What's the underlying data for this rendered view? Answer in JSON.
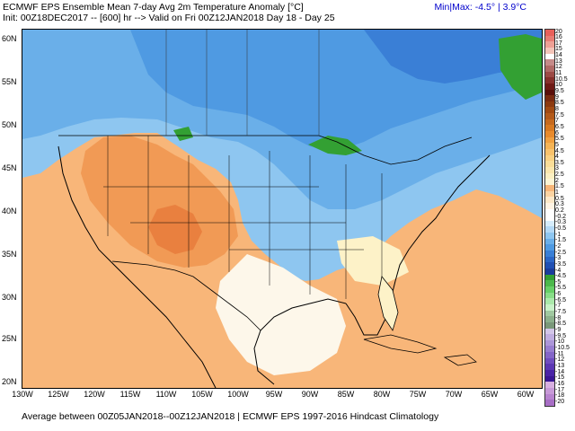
{
  "header": {
    "title": "ECMWF EPS Ensemble Mean 7-day Avg 2m Temperature Anomaly [°C]",
    "init_line": "Init: 00Z18DEC2017 -- [600] hr --> Valid on Fri 00Z12JAN2018  Day 18 - Day 25",
    "minmax": "Min|Max: -4.5° | 3.9°C"
  },
  "footer": {
    "text": "Average between 00Z05JAN2018--00Z12JAN2018 | ECMWF EPS 1997-2016 Hindcast Climatology"
  },
  "axes": {
    "lat_labels": [
      "60N",
      "55N",
      "50N",
      "45N",
      "40N",
      "35N",
      "30N",
      "25N",
      "20N"
    ],
    "lon_labels": [
      "130W",
      "125W",
      "120W",
      "115W",
      "110W",
      "105W",
      "100W",
      "95W",
      "90W",
      "85W",
      "80W",
      "75W",
      "70W",
      "65W",
      "60W"
    ]
  },
  "legend": {
    "labels": [
      "20",
      "16",
      "17",
      "15",
      "14",
      "13",
      "12",
      "11",
      "10.5",
      "10",
      "9.5",
      "9",
      "8.5",
      "8",
      "7.5",
      "7",
      "6.5",
      "6",
      "5.5",
      "5",
      "4.5",
      "4",
      "3.5",
      "3",
      "2.5",
      "2",
      "1.5",
      "1",
      "0.5",
      "0.3",
      "0.2",
      "-0.2",
      "-0.3",
      "-0.5",
      "-1",
      "-1.5",
      "-2",
      "-2.5",
      "-3",
      "-3.5",
      "-4",
      "-4.5",
      "-5",
      "-5.5",
      "-6",
      "-6.5",
      "-7",
      "-7.5",
      "-8",
      "-8.5",
      "-9",
      "-9.5",
      "-10",
      "-10.5",
      "-11",
      "-12",
      "-13",
      "-14",
      "-15",
      "-16",
      "-17",
      "-18",
      "-20"
    ],
    "colors": [
      "#e8605a",
      "#e87c73",
      "#eea095",
      "#f4c4b8",
      "#ffffff",
      "#c58a88",
      "#b06a66",
      "#9c4a45",
      "#86302b",
      "#6e1a15",
      "#5a0e0a",
      "#7a2a10",
      "#8c3a10",
      "#a14a12",
      "#b35a1a",
      "#c66a1f",
      "#d87a22",
      "#e88a2c",
      "#f0a040",
      "#f5b456",
      "#f8c26c",
      "#f9d082",
      "#fadd98",
      "#fbe6ad",
      "#fcefc2",
      "#fdf5d4",
      "#f8b679",
      "#fbd3a2",
      "#fde8c8",
      "#fff4e4",
      "#ffffff",
      "#ffffff",
      "#d6ecfb",
      "#b4d9f6",
      "#8ec6f0",
      "#6aafe9",
      "#4f9ae2",
      "#3a7fd6",
      "#2c66c6",
      "#204fb3",
      "#1a3c9c",
      "#33a033",
      "#4cb84c",
      "#67cf67",
      "#88dd88",
      "#aae9aa",
      "#c8f2c8",
      "#a0c8a0",
      "#8cb08c",
      "#7a987a",
      "#d3c6e8",
      "#c0aee0",
      "#ac96d8",
      "#987ed0",
      "#8466c8",
      "#704ebf",
      "#5c38b4",
      "#4a24a6",
      "#3a1694",
      "#d8b0e0",
      "#c89ad8",
      "#b884cf",
      "#a86ec6"
    ]
  }
}
